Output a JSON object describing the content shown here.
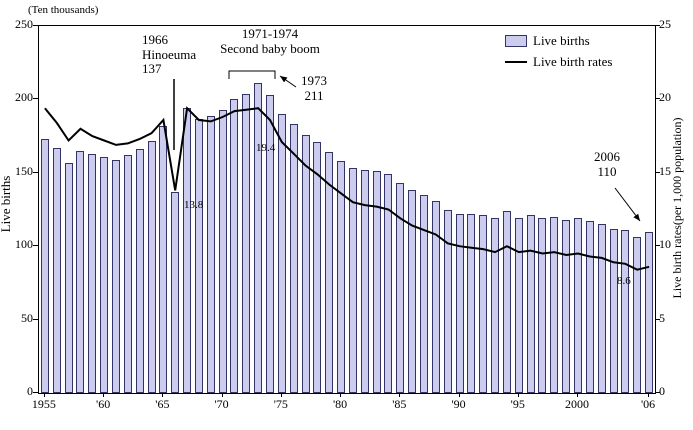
{
  "chart_data": {
    "type": "bar",
    "combo": "bar+line",
    "left_axis": {
      "unit": "(Ten thousands)",
      "label": "Live births",
      "ticks": [
        0,
        50,
        100,
        150,
        200,
        250
      ],
      "max": 250
    },
    "right_axis": {
      "label": "Live birth rates(per 1,000 population)",
      "ticks": [
        0,
        5,
        10,
        15,
        20,
        25
      ],
      "max": 25
    },
    "x_ticks": {
      "labels": [
        "1955",
        "'60",
        "'65",
        "'70",
        "'75",
        "'80",
        "'85",
        "'90",
        "'95",
        "2000",
        "'06"
      ],
      "indices": [
        0,
        5,
        10,
        15,
        20,
        25,
        30,
        35,
        40,
        45,
        51
      ]
    },
    "years": [
      1955,
      1956,
      1957,
      1958,
      1959,
      1960,
      1961,
      1962,
      1963,
      1964,
      1965,
      1966,
      1967,
      1968,
      1969,
      1970,
      1971,
      1972,
      1973,
      1974,
      1975,
      1976,
      1977,
      1978,
      1979,
      1980,
      1981,
      1982,
      1983,
      1984,
      1985,
      1986,
      1987,
      1988,
      1989,
      1990,
      1991,
      1992,
      1993,
      1994,
      1995,
      1996,
      1997,
      1998,
      1999,
      2000,
      2001,
      2002,
      2003,
      2004,
      2005,
      2006
    ],
    "series": [
      {
        "name": "Live births",
        "type": "bar",
        "axis": "left",
        "values": [
          173,
          167,
          157,
          165,
          163,
          161,
          159,
          162,
          166,
          172,
          182,
          137,
          194,
          187,
          189,
          193,
          200,
          204,
          211,
          203,
          190,
          183,
          176,
          171,
          164,
          158,
          153,
          152,
          151,
          149,
          143,
          138,
          135,
          131,
          125,
          122,
          122,
          121,
          119,
          124,
          119,
          121,
          119,
          120,
          118,
          119,
          117,
          115,
          112,
          111,
          106,
          110
        ]
      },
      {
        "name": "Live birth rates",
        "type": "line",
        "axis": "right",
        "values": [
          19.4,
          18.4,
          17.2,
          18.0,
          17.5,
          17.2,
          16.9,
          17.0,
          17.3,
          17.7,
          18.6,
          13.8,
          19.4,
          18.6,
          18.5,
          18.8,
          19.2,
          19.3,
          19.4,
          18.6,
          17.1,
          16.3,
          15.5,
          14.9,
          14.2,
          13.6,
          13.0,
          12.8,
          12.7,
          12.5,
          11.9,
          11.4,
          11.1,
          10.8,
          10.2,
          10.0,
          9.9,
          9.8,
          9.6,
          10.0,
          9.6,
          9.7,
          9.5,
          9.6,
          9.4,
          9.5,
          9.3,
          9.2,
          8.9,
          8.8,
          8.4,
          8.6
        ]
      }
    ],
    "legend": {
      "position": "top-right",
      "items": [
        {
          "label": "Live births",
          "swatch": "bar"
        },
        {
          "label": "Live birth rates",
          "swatch": "line"
        }
      ]
    },
    "colors": {
      "bar_fill": "#ccccee",
      "bar_border": "#333366",
      "line": "#000000"
    },
    "annotations": {
      "hinoeuma": "1966\nHinoeuma\n137",
      "baby_boom": "1971-1974\nSecond baby boom",
      "peak_1973": "1973\n211",
      "end_2006": "2006\n110",
      "rate_peak": "19.4",
      "rate_1966": "13.8",
      "rate_2006": "8.6"
    }
  }
}
